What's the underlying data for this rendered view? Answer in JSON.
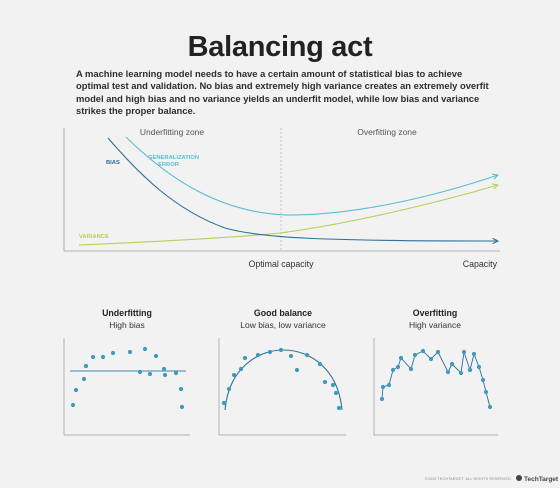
{
  "title": "Balancing act",
  "intro": "A machine learning model needs to have a certain amount of statistical bias to achieve optimal test and validation. No bias and extremely high variance creates an extremely overfit model and high bias and no variance yields an underfit model, while low bias and variance strikes the proper balance.",
  "main_chart": {
    "zone_left": "Underfitting zone",
    "zone_right": "Overfitting zone",
    "label_bias": "BIAS",
    "label_error_line1": "GENERALIZATION",
    "label_error_line2": "ERROR",
    "label_variance": "VARIANCE",
    "label_optimal": "Optimal capacity",
    "label_capacity": "Capacity"
  },
  "panels": [
    {
      "title": "Underfitting",
      "subtitle": "High bias"
    },
    {
      "title": "Good balance",
      "subtitle": "Low bias, low variance"
    },
    {
      "title": "Overfitting",
      "subtitle": "High variance"
    }
  ],
  "footer": {
    "credit": "©2019 TECHTARGET. ALL RIGHTS RESERVED.",
    "brand": "TechTarget"
  },
  "colors": {
    "bias": "#2f6f99",
    "generalization_error": "#5bbcd4",
    "variance": "#b5cf5b",
    "dots": "#3d9bc0",
    "axis": "#999999"
  }
}
